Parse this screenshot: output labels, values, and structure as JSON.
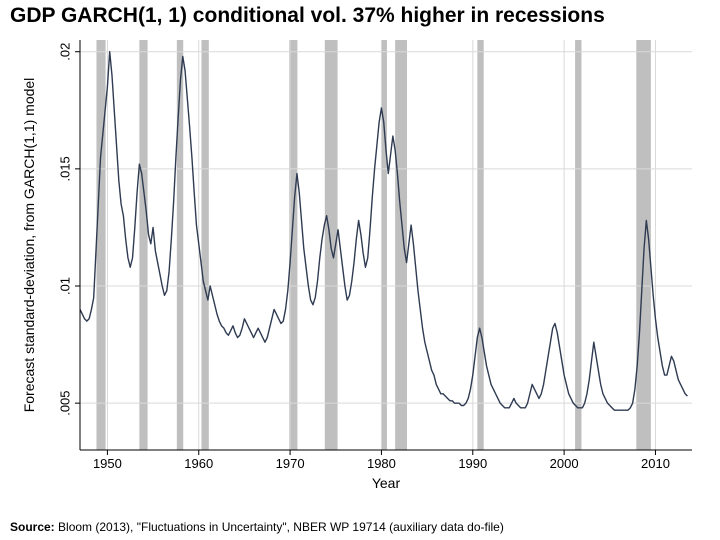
{
  "title": "GDP GARCH(1, 1) conditional vol. 37% higher in recessions",
  "source_label": "Source:",
  "source_text": " Bloom (2013), \"Fluctuations in Uncertainty\", NBER WP 19714 (auxiliary data do-file)",
  "chart": {
    "type": "line",
    "background_color": "#ffffff",
    "grid_color": "#d9d9d9",
    "grid_width": 1,
    "axis_line_color": "#000000",
    "axis_line_width": 1,
    "line_color": "#2f3b52",
    "line_width": 1.4,
    "recession_band_color": "#bfbfbf",
    "xlabel": "Year",
    "ylabel": "Forecast standard-deviation, from GARCH(1,1) model",
    "label_fontsize": 14,
    "tick_fontsize": 13,
    "xlim": [
      1947,
      2014
    ],
    "ylim": [
      0.003,
      0.0205
    ],
    "xticks": [
      1950,
      1960,
      1970,
      1980,
      1990,
      2000,
      2010
    ],
    "yticks": [
      0.005,
      0.01,
      0.015,
      0.02
    ],
    "ytick_labels": [
      ".005",
      ".01",
      ".015",
      ".02"
    ],
    "recession_bands": [
      [
        1948.8,
        1949.8
      ],
      [
        1953.5,
        1954.4
      ],
      [
        1957.6,
        1958.3
      ],
      [
        1960.3,
        1961.1
      ],
      [
        1969.9,
        1970.8
      ],
      [
        1973.8,
        1975.2
      ],
      [
        1980.0,
        1980.6
      ],
      [
        1981.5,
        1982.8
      ],
      [
        1990.5,
        1991.2
      ],
      [
        2001.2,
        2001.9
      ],
      [
        2007.9,
        2009.5
      ]
    ],
    "series": {
      "x": [
        1947.0,
        1947.25,
        1947.5,
        1947.75,
        1948.0,
        1948.25,
        1948.5,
        1948.75,
        1949.0,
        1949.25,
        1949.5,
        1949.75,
        1950.0,
        1950.25,
        1950.5,
        1950.75,
        1951.0,
        1951.25,
        1951.5,
        1951.75,
        1952.0,
        1952.25,
        1952.5,
        1952.75,
        1953.0,
        1953.25,
        1953.5,
        1953.75,
        1954.0,
        1954.25,
        1954.5,
        1954.75,
        1955.0,
        1955.25,
        1955.5,
        1955.75,
        1956.0,
        1956.25,
        1956.5,
        1956.75,
        1957.0,
        1957.25,
        1957.5,
        1957.75,
        1958.0,
        1958.25,
        1958.5,
        1958.75,
        1959.0,
        1959.25,
        1959.5,
        1959.75,
        1960.0,
        1960.25,
        1960.5,
        1960.75,
        1961.0,
        1961.25,
        1961.5,
        1961.75,
        1962.0,
        1962.25,
        1962.5,
        1962.75,
        1963.0,
        1963.25,
        1963.5,
        1963.75,
        1964.0,
        1964.25,
        1964.5,
        1964.75,
        1965.0,
        1965.25,
        1965.5,
        1965.75,
        1966.0,
        1966.25,
        1966.5,
        1966.75,
        1967.0,
        1967.25,
        1967.5,
        1967.75,
        1968.0,
        1968.25,
        1968.5,
        1968.75,
        1969.0,
        1969.25,
        1969.5,
        1969.75,
        1970.0,
        1970.25,
        1970.5,
        1970.75,
        1971.0,
        1971.25,
        1971.5,
        1971.75,
        1972.0,
        1972.25,
        1972.5,
        1972.75,
        1973.0,
        1973.25,
        1973.5,
        1973.75,
        1974.0,
        1974.25,
        1974.5,
        1974.75,
        1975.0,
        1975.25,
        1975.5,
        1975.75,
        1976.0,
        1976.25,
        1976.5,
        1976.75,
        1977.0,
        1977.25,
        1977.5,
        1977.75,
        1978.0,
        1978.25,
        1978.5,
        1978.75,
        1979.0,
        1979.25,
        1979.5,
        1979.75,
        1980.0,
        1980.25,
        1980.5,
        1980.75,
        1981.0,
        1981.25,
        1981.5,
        1981.75,
        1982.0,
        1982.25,
        1982.5,
        1982.75,
        1983.0,
        1983.25,
        1983.5,
        1983.75,
        1984.0,
        1984.25,
        1984.5,
        1984.75,
        1985.0,
        1985.25,
        1985.5,
        1985.75,
        1986.0,
        1986.25,
        1986.5,
        1986.75,
        1987.0,
        1987.25,
        1987.5,
        1987.75,
        1988.0,
        1988.25,
        1988.5,
        1988.75,
        1989.0,
        1989.25,
        1989.5,
        1989.75,
        1990.0,
        1990.25,
        1990.5,
        1990.75,
        1991.0,
        1991.25,
        1991.5,
        1991.75,
        1992.0,
        1992.25,
        1992.5,
        1992.75,
        1993.0,
        1993.25,
        1993.5,
        1993.75,
        1994.0,
        1994.25,
        1994.5,
        1994.75,
        1995.0,
        1995.25,
        1995.5,
        1995.75,
        1996.0,
        1996.25,
        1996.5,
        1996.75,
        1997.0,
        1997.25,
        1997.5,
        1997.75,
        1998.0,
        1998.25,
        1998.5,
        1998.75,
        1999.0,
        1999.25,
        1999.5,
        1999.75,
        2000.0,
        2000.25,
        2000.5,
        2000.75,
        2001.0,
        2001.25,
        2001.5,
        2001.75,
        2002.0,
        2002.25,
        2002.5,
        2002.75,
        2003.0,
        2003.25,
        2003.5,
        2003.75,
        2004.0,
        2004.25,
        2004.5,
        2004.75,
        2005.0,
        2005.25,
        2005.5,
        2005.75,
        2006.0,
        2006.25,
        2006.5,
        2006.75,
        2007.0,
        2007.25,
        2007.5,
        2007.75,
        2008.0,
        2008.25,
        2008.5,
        2008.75,
        2009.0,
        2009.25,
        2009.5,
        2009.75,
        2010.0,
        2010.25,
        2010.5,
        2010.75,
        2011.0,
        2011.25,
        2011.5,
        2011.75,
        2012.0,
        2012.25,
        2012.5,
        2012.75,
        2013.0,
        2013.25,
        2013.5
      ],
      "y": [
        0.009,
        0.0088,
        0.0086,
        0.0085,
        0.0086,
        0.009,
        0.0095,
        0.0115,
        0.0135,
        0.0155,
        0.0165,
        0.0175,
        0.0185,
        0.02,
        0.019,
        0.0175,
        0.016,
        0.0145,
        0.0135,
        0.013,
        0.012,
        0.0112,
        0.0108,
        0.0112,
        0.0125,
        0.014,
        0.0152,
        0.0148,
        0.014,
        0.0132,
        0.0122,
        0.0118,
        0.0125,
        0.0115,
        0.011,
        0.0105,
        0.01,
        0.0096,
        0.0098,
        0.0106,
        0.012,
        0.0136,
        0.0155,
        0.0172,
        0.0188,
        0.0198,
        0.0192,
        0.018,
        0.0168,
        0.0155,
        0.014,
        0.0126,
        0.0118,
        0.011,
        0.0102,
        0.0098,
        0.0094,
        0.01,
        0.0096,
        0.0092,
        0.0088,
        0.0085,
        0.0083,
        0.0082,
        0.008,
        0.0079,
        0.0081,
        0.0083,
        0.008,
        0.0078,
        0.0079,
        0.0082,
        0.0086,
        0.0084,
        0.0082,
        0.008,
        0.0078,
        0.008,
        0.0082,
        0.008,
        0.0078,
        0.0076,
        0.0078,
        0.0082,
        0.0086,
        0.009,
        0.0088,
        0.0086,
        0.0084,
        0.0085,
        0.009,
        0.0098,
        0.011,
        0.0124,
        0.0138,
        0.0148,
        0.014,
        0.0128,
        0.0116,
        0.0108,
        0.01,
        0.0094,
        0.0092,
        0.0095,
        0.0102,
        0.0112,
        0.012,
        0.0126,
        0.013,
        0.0124,
        0.0116,
        0.0112,
        0.0118,
        0.0124,
        0.0116,
        0.0108,
        0.01,
        0.0094,
        0.0096,
        0.0102,
        0.011,
        0.012,
        0.0128,
        0.0122,
        0.0114,
        0.0108,
        0.0112,
        0.0124,
        0.0138,
        0.015,
        0.016,
        0.017,
        0.0176,
        0.017,
        0.0158,
        0.0148,
        0.0156,
        0.0164,
        0.0158,
        0.0148,
        0.0136,
        0.0126,
        0.0116,
        0.011,
        0.0118,
        0.0126,
        0.0118,
        0.0108,
        0.0098,
        0.009,
        0.0082,
        0.0076,
        0.0072,
        0.0068,
        0.0064,
        0.0062,
        0.0058,
        0.0056,
        0.0054,
        0.0054,
        0.0053,
        0.0052,
        0.0051,
        0.0051,
        0.005,
        0.005,
        0.005,
        0.0049,
        0.0049,
        0.005,
        0.0052,
        0.0056,
        0.0062,
        0.007,
        0.0078,
        0.0082,
        0.0078,
        0.0072,
        0.0066,
        0.0062,
        0.0058,
        0.0056,
        0.0054,
        0.0052,
        0.005,
        0.0049,
        0.0048,
        0.0048,
        0.0048,
        0.005,
        0.0052,
        0.005,
        0.0049,
        0.0048,
        0.0048,
        0.0048,
        0.005,
        0.0054,
        0.0058,
        0.0056,
        0.0054,
        0.0052,
        0.0054,
        0.0058,
        0.0064,
        0.007,
        0.0076,
        0.0082,
        0.0084,
        0.008,
        0.0074,
        0.0068,
        0.0062,
        0.0058,
        0.0054,
        0.0052,
        0.005,
        0.0049,
        0.0048,
        0.0048,
        0.0048,
        0.005,
        0.0054,
        0.006,
        0.0068,
        0.0076,
        0.007,
        0.0064,
        0.0058,
        0.0054,
        0.0052,
        0.005,
        0.0049,
        0.0048,
        0.0047,
        0.0047,
        0.0047,
        0.0047,
        0.0047,
        0.0047,
        0.0047,
        0.0048,
        0.005,
        0.0056,
        0.0066,
        0.008,
        0.0098,
        0.0116,
        0.0128,
        0.012,
        0.0108,
        0.0096,
        0.0086,
        0.0078,
        0.0072,
        0.0066,
        0.0062,
        0.0062,
        0.0066,
        0.007,
        0.0068,
        0.0064,
        0.006,
        0.0058,
        0.0056,
        0.0054,
        0.0053
      ]
    }
  }
}
